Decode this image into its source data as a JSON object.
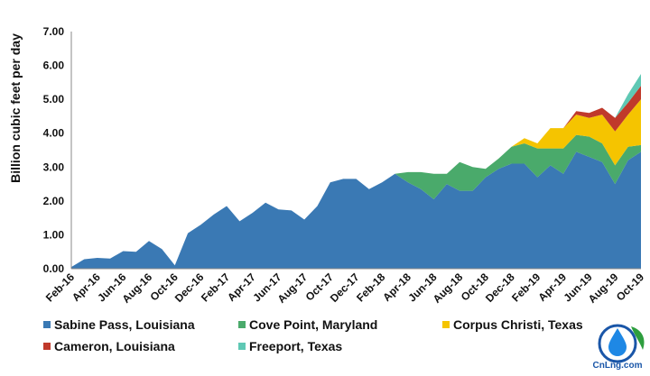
{
  "chart_data": {
    "type": "area",
    "stacked": true,
    "ylabel": "Billion cubic feet per day",
    "xlabel": "",
    "title": "",
    "ylim": [
      0,
      7
    ],
    "yticks": [
      0,
      1,
      2,
      3,
      4,
      5,
      6,
      7
    ],
    "ytick_labels": [
      "0.00",
      "1.00",
      "2.00",
      "3.00",
      "4.00",
      "5.00",
      "6.00",
      "7.00"
    ],
    "grid": false,
    "legend_position": "bottom",
    "x": [
      "Feb-16",
      "Mar-16",
      "Apr-16",
      "May-16",
      "Jun-16",
      "Jul-16",
      "Aug-16",
      "Sep-16",
      "Oct-16",
      "Nov-16",
      "Dec-16",
      "Jan-17",
      "Feb-17",
      "Mar-17",
      "Apr-17",
      "May-17",
      "Jun-17",
      "Jul-17",
      "Aug-17",
      "Sep-17",
      "Oct-17",
      "Nov-17",
      "Dec-17",
      "Jan-18",
      "Feb-18",
      "Mar-18",
      "Apr-18",
      "May-18",
      "Jun-18",
      "Jul-18",
      "Aug-18",
      "Sep-18",
      "Oct-18",
      "Nov-18",
      "Dec-18",
      "Jan-19",
      "Feb-19",
      "Mar-19",
      "Apr-19",
      "May-19",
      "Jun-19",
      "Jul-19",
      "Aug-19",
      "Sep-19",
      "Oct-19"
    ],
    "xtick_labels": [
      "Feb-16",
      "Apr-16",
      "Jun-16",
      "Aug-16",
      "Oct-16",
      "Dec-16",
      "Feb-17",
      "Apr-17",
      "Jun-17",
      "Aug-17",
      "Oct-17",
      "Dec-17",
      "Feb-18",
      "Apr-18",
      "Jun-18",
      "Aug-18",
      "Oct-18",
      "Dec-18",
      "Feb-19",
      "Apr-19",
      "Jun-19",
      "Aug-19",
      "Oct-19"
    ],
    "series": [
      {
        "name": "Sabine Pass, Louisiana",
        "color": "#3a79b4",
        "values": [
          0.05,
          0.28,
          0.32,
          0.3,
          0.52,
          0.5,
          0.82,
          0.58,
          0.1,
          1.05,
          1.3,
          1.6,
          1.85,
          1.4,
          1.65,
          1.95,
          1.75,
          1.72,
          1.45,
          1.85,
          2.55,
          2.65,
          2.65,
          2.35,
          2.55,
          2.8,
          2.55,
          2.35,
          2.05,
          2.5,
          2.3,
          2.3,
          2.7,
          2.95,
          3.1,
          3.1,
          2.7,
          3.05,
          2.8,
          3.45,
          3.3,
          3.15,
          2.5,
          3.2,
          3.45
        ]
      },
      {
        "name": "Cove Point, Maryland",
        "color": "#4aaa6b",
        "values": [
          0,
          0,
          0,
          0,
          0,
          0,
          0,
          0,
          0,
          0,
          0,
          0,
          0,
          0,
          0,
          0,
          0,
          0,
          0,
          0,
          0,
          0,
          0,
          0,
          0,
          0,
          0.3,
          0.5,
          0.75,
          0.3,
          0.85,
          0.7,
          0.25,
          0.3,
          0.5,
          0.6,
          0.85,
          0.5,
          0.75,
          0.5,
          0.6,
          0.55,
          0.55,
          0.4,
          0.2
        ]
      },
      {
        "name": "Corpus Christi, Texas",
        "color": "#f5c400",
        "values": [
          0,
          0,
          0,
          0,
          0,
          0,
          0,
          0,
          0,
          0,
          0,
          0,
          0,
          0,
          0,
          0,
          0,
          0,
          0,
          0,
          0,
          0,
          0,
          0,
          0,
          0,
          0,
          0,
          0,
          0,
          0,
          0,
          0,
          0,
          0,
          0.15,
          0.15,
          0.6,
          0.6,
          0.6,
          0.55,
          0.85,
          1.0,
          0.95,
          1.35
        ]
      },
      {
        "name": "Cameron, Louisiana",
        "color": "#c0392b",
        "values": [
          0,
          0,
          0,
          0,
          0,
          0,
          0,
          0,
          0,
          0,
          0,
          0,
          0,
          0,
          0,
          0,
          0,
          0,
          0,
          0,
          0,
          0,
          0,
          0,
          0,
          0,
          0,
          0,
          0,
          0,
          0,
          0,
          0,
          0,
          0,
          0,
          0,
          0,
          0,
          0.1,
          0.15,
          0.2,
          0.4,
          0.35,
          0.4
        ]
      },
      {
        "name": "Freeport, Texas",
        "color": "#5fc8b4",
        "values": [
          0,
          0,
          0,
          0,
          0,
          0,
          0,
          0,
          0,
          0,
          0,
          0,
          0,
          0,
          0,
          0,
          0,
          0,
          0,
          0,
          0,
          0,
          0,
          0,
          0,
          0,
          0,
          0,
          0,
          0,
          0,
          0,
          0,
          0,
          0,
          0,
          0,
          0,
          0,
          0,
          0,
          0,
          0,
          0.25,
          0.35
        ]
      }
    ]
  },
  "watermark": {
    "text": "CnLng.com",
    "colors": {
      "ring": "#1a56a8",
      "drop": "#1e88e5",
      "leaf": "#2e9e3e"
    }
  }
}
